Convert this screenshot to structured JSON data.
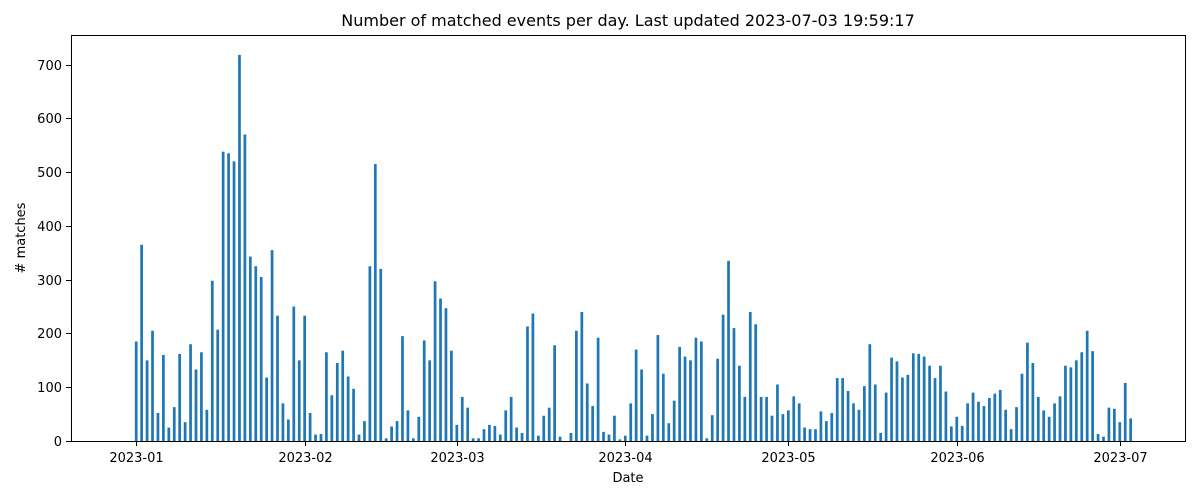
{
  "chart_data": {
    "type": "bar",
    "title": "Number of matched events per day. Last updated 2023-07-03 19:59:17",
    "xlabel": "Date",
    "ylabel": "# matches",
    "ylim": [
      0,
      755
    ],
    "xlim": [
      "2022-12-20",
      "2023-07-13"
    ],
    "grid": false,
    "color": "#1f77b4",
    "x_ticks": [
      "2023-01-01",
      "2023-02-01",
      "2023-03-01",
      "2023-04-01",
      "2023-05-01",
      "2023-06-01",
      "2023-07-01"
    ],
    "x_tick_labels": [
      "2023-01",
      "2023-02",
      "2023-03",
      "2023-04",
      "2023-05",
      "2023-06",
      "2023-07"
    ],
    "y_ticks": [
      0,
      100,
      200,
      300,
      400,
      500,
      600,
      700
    ],
    "x": [
      "2023-01-01",
      "2023-01-02",
      "2023-01-03",
      "2023-01-04",
      "2023-01-05",
      "2023-01-06",
      "2023-01-07",
      "2023-01-08",
      "2023-01-09",
      "2023-01-10",
      "2023-01-11",
      "2023-01-12",
      "2023-01-13",
      "2023-01-14",
      "2023-01-15",
      "2023-01-16",
      "2023-01-17",
      "2023-01-18",
      "2023-01-19",
      "2023-01-20",
      "2023-01-21",
      "2023-01-22",
      "2023-01-23",
      "2023-01-24",
      "2023-01-25",
      "2023-01-26",
      "2023-01-27",
      "2023-01-28",
      "2023-01-29",
      "2023-01-30",
      "2023-01-31",
      "2023-02-01",
      "2023-02-02",
      "2023-02-03",
      "2023-02-04",
      "2023-02-05",
      "2023-02-06",
      "2023-02-07",
      "2023-02-08",
      "2023-02-09",
      "2023-02-10",
      "2023-02-11",
      "2023-02-12",
      "2023-02-13",
      "2023-02-14",
      "2023-02-15",
      "2023-02-16",
      "2023-02-17",
      "2023-02-18",
      "2023-02-19",
      "2023-02-20",
      "2023-02-21",
      "2023-02-22",
      "2023-02-23",
      "2023-02-24",
      "2023-02-25",
      "2023-02-26",
      "2023-02-27",
      "2023-02-28",
      "2023-03-01",
      "2023-03-02",
      "2023-03-03",
      "2023-03-04",
      "2023-03-05",
      "2023-03-06",
      "2023-03-07",
      "2023-03-08",
      "2023-03-09",
      "2023-03-10",
      "2023-03-11",
      "2023-03-12",
      "2023-03-13",
      "2023-03-14",
      "2023-03-15",
      "2023-03-16",
      "2023-03-17",
      "2023-03-18",
      "2023-03-19",
      "2023-03-20",
      "2023-03-21",
      "2023-03-22",
      "2023-03-23",
      "2023-03-24",
      "2023-03-25",
      "2023-03-26",
      "2023-03-27",
      "2023-03-28",
      "2023-03-29",
      "2023-03-30",
      "2023-03-31",
      "2023-04-01",
      "2023-04-02",
      "2023-04-03",
      "2023-04-04",
      "2023-04-05",
      "2023-04-06",
      "2023-04-07",
      "2023-04-08",
      "2023-04-09",
      "2023-04-10",
      "2023-04-11",
      "2023-04-12",
      "2023-04-13",
      "2023-04-14",
      "2023-04-15",
      "2023-04-16",
      "2023-04-17",
      "2023-04-18",
      "2023-04-19",
      "2023-04-20",
      "2023-04-21",
      "2023-04-22",
      "2023-04-23",
      "2023-04-24",
      "2023-04-25",
      "2023-04-26",
      "2023-04-27",
      "2023-04-28",
      "2023-04-29",
      "2023-04-30",
      "2023-05-01",
      "2023-05-02",
      "2023-05-03",
      "2023-05-04",
      "2023-05-05",
      "2023-05-06",
      "2023-05-07",
      "2023-05-08",
      "2023-05-09",
      "2023-05-10",
      "2023-05-11",
      "2023-05-12",
      "2023-05-13",
      "2023-05-14",
      "2023-05-15",
      "2023-05-16",
      "2023-05-17",
      "2023-05-18",
      "2023-05-19",
      "2023-05-20",
      "2023-05-21",
      "2023-05-22",
      "2023-05-23",
      "2023-05-24",
      "2023-05-25",
      "2023-05-26",
      "2023-05-27",
      "2023-05-28",
      "2023-05-29",
      "2023-05-30",
      "2023-05-31",
      "2023-06-01",
      "2023-06-02",
      "2023-06-03",
      "2023-06-04",
      "2023-06-05",
      "2023-06-06",
      "2023-06-07",
      "2023-06-08",
      "2023-06-09",
      "2023-06-10",
      "2023-06-11",
      "2023-06-12",
      "2023-06-13",
      "2023-06-14",
      "2023-06-15",
      "2023-06-16",
      "2023-06-17",
      "2023-06-18",
      "2023-06-19",
      "2023-06-20",
      "2023-06-21",
      "2023-06-22",
      "2023-06-23",
      "2023-06-24",
      "2023-06-25",
      "2023-06-26",
      "2023-06-27",
      "2023-06-28",
      "2023-06-29",
      "2023-06-30",
      "2023-07-01",
      "2023-07-02",
      "2023-07-03"
    ],
    "values": [
      185,
      365,
      150,
      205,
      52,
      160,
      25,
      63,
      162,
      35,
      180,
      133,
      165,
      58,
      298,
      207,
      538,
      535,
      520,
      718,
      570,
      343,
      325,
      305,
      118,
      355,
      233,
      70,
      40,
      250,
      150,
      233,
      52,
      12,
      13,
      165,
      85,
      145,
      168,
      120,
      97,
      12,
      37,
      325,
      515,
      320,
      5,
      27,
      37,
      195,
      57,
      5,
      45,
      187,
      150,
      297,
      265,
      247,
      168,
      30,
      82,
      62,
      5,
      5,
      22,
      30,
      28,
      12,
      57,
      82,
      25,
      15,
      213,
      237,
      10,
      47,
      62,
      178,
      8,
      0,
      15,
      205,
      240,
      107,
      65,
      192,
      17,
      12,
      47,
      3,
      10,
      70,
      170,
      133,
      10,
      50,
      197,
      125,
      33,
      75,
      175,
      157,
      150,
      192,
      185,
      5,
      48,
      153,
      235,
      335,
      210,
      140,
      82,
      240,
      217,
      82,
      82,
      47,
      105,
      50,
      57,
      83,
      70,
      25,
      22,
      22,
      55,
      37,
      52,
      117,
      117,
      93,
      70,
      58,
      102,
      180,
      105,
      15,
      90,
      155,
      148,
      118,
      123,
      163,
      162,
      157,
      140,
      117,
      140,
      92,
      27,
      45,
      28,
      70,
      90,
      73,
      65,
      80,
      88,
      95,
      58,
      22,
      63,
      125,
      183,
      145,
      82,
      57,
      45,
      70,
      83,
      140,
      137,
      150,
      165,
      205,
      167,
      13,
      8,
      62,
      60,
      35,
      108,
      42
    ]
  }
}
